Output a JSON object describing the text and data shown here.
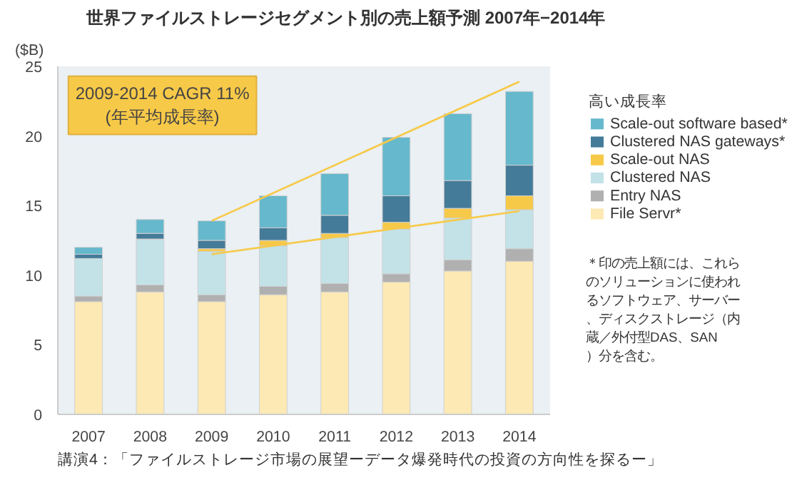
{
  "chart_data": {
    "type": "bar",
    "stacked": true,
    "title": "世界ファイルストレージセグメント別の売上額予測 2007年−2014年",
    "ylabel": "($B)",
    "legend_title": "高い成長率",
    "x": [
      2007,
      2008,
      2009,
      2010,
      2011,
      2012,
      2013,
      2014
    ],
    "xlim": [
      2006.5,
      2014.5
    ],
    "xticks": [
      2007,
      2008,
      2009,
      2010,
      2011,
      2012,
      2013,
      2014
    ],
    "ylim": [
      0,
      25
    ],
    "yticks": [
      0,
      5,
      10,
      15,
      20,
      25
    ],
    "grid": false,
    "legend": "right",
    "series": [
      {
        "name": "File Servr*",
        "color": "#fce9b3",
        "values": [
          8.1,
          8.8,
          8.1,
          8.6,
          8.8,
          9.5,
          10.3,
          11.0
        ]
      },
      {
        "name": "Entry NAS",
        "color": "#b0b0b0",
        "values": [
          0.4,
          0.5,
          0.5,
          0.6,
          0.6,
          0.6,
          0.8,
          0.9
        ]
      },
      {
        "name": "Clustered NAS",
        "color": "#c2e2e8",
        "values": [
          2.7,
          3.3,
          3.1,
          2.9,
          3.3,
          3.2,
          3.0,
          2.8
        ]
      },
      {
        "name": "Scale-out NAS",
        "color": "#f7c948",
        "values": [
          0,
          0,
          0.2,
          0.4,
          0.3,
          0.5,
          0.7,
          1.0
        ]
      },
      {
        "name": "Clustered NAS gateways*",
        "color": "#447b99",
        "values": [
          0.3,
          0.4,
          0.6,
          0.9,
          1.3,
          1.9,
          2.0,
          2.2
        ]
      },
      {
        "name": "Scale-out software based*",
        "color": "#66b8cc",
        "values": [
          0.5,
          1.0,
          1.4,
          2.3,
          3.0,
          4.2,
          4.8,
          5.3
        ]
      },
      {
        "type": "line",
        "color": "#f7c948",
        "values": [
          null,
          null,
          13.9,
          null,
          null,
          null,
          null,
          23.9
        ]
      },
      {
        "type": "line",
        "color": "#f7c948",
        "values": [
          null,
          null,
          11.5,
          null,
          null,
          null,
          null,
          14.6
        ]
      }
    ],
    "annotations": [
      "2009-2014 CAGR 11%\n(年平均成長率)",
      "＊印の売上額には、これらのソリューションに使われるソフトウェア、サーバー、ディスクストレージ（内蔵／外付型DAS、SAN）分を含む。",
      "講演4：「ファイルストレージ市場の展望ーデータ爆発時代の投資の方向性を探るー」"
    ]
  }
}
